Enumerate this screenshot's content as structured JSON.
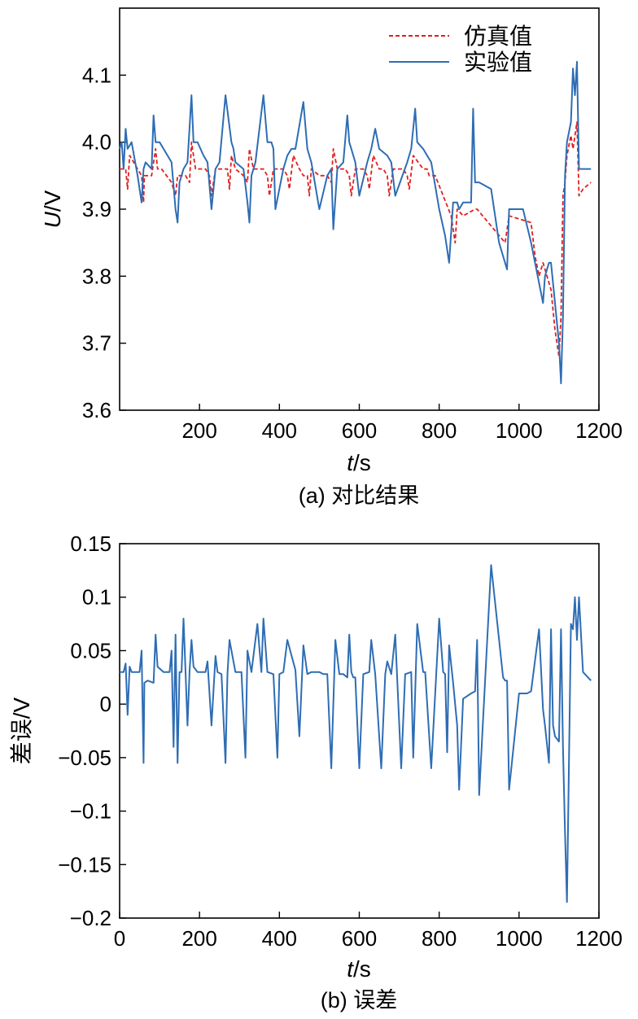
{
  "chart_data": [
    {
      "type": "line",
      "caption": "(a) 对比结果",
      "xlabel_italic": "t",
      "xlabel_unit": "/s",
      "ylabel_italic": "U",
      "ylabel_unit": "/V",
      "xlim": [
        0,
        1200
      ],
      "ylim": [
        3.6,
        4.2
      ],
      "xticks": [
        200,
        400,
        600,
        800,
        1000,
        1200
      ],
      "xtick_labels": [
        "200",
        "400",
        "600",
        "800",
        "1000",
        "1200"
      ],
      "yticks": [
        3.6,
        3.7,
        3.8,
        3.9,
        4.0,
        4.1
      ],
      "ytick_labels": [
        "3.6",
        "3.7",
        "3.8",
        "3.9",
        "4.0",
        "4.1"
      ],
      "grid": false,
      "legend_position": "top-right",
      "series": [
        {
          "name": "仿真值",
          "color": "#e02020",
          "dash": "dashed",
          "x": [
            0,
            15,
            20,
            25,
            45,
            55,
            60,
            62,
            80,
            90,
            95,
            105,
            130,
            140,
            145,
            150,
            165,
            175,
            180,
            190,
            215,
            225,
            230,
            240,
            260,
            270,
            275,
            280,
            290,
            310,
            320,
            325,
            335,
            360,
            370,
            375,
            385,
            410,
            420,
            425,
            435,
            450,
            460,
            470,
            475,
            480,
            500,
            520,
            530,
            535,
            545,
            565,
            575,
            580,
            590,
            610,
            620,
            625,
            635,
            650,
            660,
            670,
            675,
            685,
            710,
            720,
            725,
            735,
            760,
            770,
            775,
            790,
            830,
            840,
            845,
            860,
            890,
            895,
            965,
            975,
            1030,
            1040,
            1050,
            1060,
            1080,
            1090,
            1100,
            1105,
            1110,
            1115,
            1120,
            1130,
            1135,
            1145,
            1150,
            1160,
            1180
          ],
          "values": [
            3.96,
            3.96,
            3.93,
            3.98,
            3.96,
            3.95,
            3.91,
            3.95,
            3.95,
            3.99,
            3.96,
            3.96,
            3.94,
            3.92,
            3.95,
            3.95,
            3.95,
            3.94,
            4.0,
            3.96,
            3.96,
            3.95,
            3.92,
            3.96,
            3.96,
            3.96,
            3.93,
            3.98,
            3.96,
            3.95,
            3.94,
            3.99,
            3.96,
            3.96,
            3.95,
            3.92,
            3.96,
            3.96,
            3.95,
            3.93,
            3.98,
            3.96,
            3.95,
            3.95,
            3.92,
            3.96,
            3.95,
            3.95,
            3.94,
            3.99,
            3.96,
            3.96,
            3.95,
            3.92,
            3.96,
            3.96,
            3.95,
            3.93,
            3.98,
            3.96,
            3.96,
            3.95,
            3.92,
            3.96,
            3.96,
            3.95,
            3.93,
            3.98,
            3.96,
            3.96,
            3.95,
            3.95,
            3.89,
            3.85,
            3.9,
            3.89,
            3.9,
            3.9,
            3.85,
            3.89,
            3.88,
            3.83,
            3.8,
            3.82,
            3.78,
            3.72,
            3.68,
            3.74,
            3.92,
            3.94,
            3.98,
            4.01,
            3.99,
            4.03,
            3.92,
            3.93,
            3.94
          ]
        },
        {
          "name": "实验值",
          "color": "#2e6db4",
          "dash": "solid",
          "x": [
            0,
            5,
            10,
            15,
            20,
            30,
            45,
            55,
            60,
            65,
            80,
            85,
            90,
            100,
            110,
            130,
            140,
            145,
            150,
            160,
            170,
            180,
            185,
            195,
            210,
            220,
            230,
            240,
            250,
            265,
            280,
            285,
            290,
            310,
            320,
            325,
            330,
            340,
            360,
            370,
            380,
            385,
            390,
            410,
            420,
            430,
            440,
            460,
            470,
            475,
            480,
            500,
            520,
            530,
            535,
            545,
            560,
            570,
            575,
            580,
            590,
            600,
            620,
            630,
            640,
            650,
            670,
            680,
            690,
            720,
            730,
            740,
            745,
            760,
            770,
            780,
            800,
            815,
            825,
            835,
            840,
            845,
            850,
            860,
            880,
            885,
            890,
            900,
            930,
            950,
            970,
            975,
            980,
            1010,
            1030,
            1040,
            1060,
            1065,
            1075,
            1080,
            1090,
            1100,
            1105,
            1110,
            1115,
            1120,
            1130,
            1135,
            1140,
            1145,
            1150,
            1160,
            1180
          ],
          "values": [
            3.99,
            4.0,
            3.96,
            4.02,
            3.99,
            4.0,
            3.95,
            3.91,
            3.96,
            3.97,
            3.96,
            4.04,
            4.0,
            4.0,
            3.99,
            3.97,
            3.9,
            3.88,
            3.94,
            3.96,
            3.97,
            4.07,
            4.0,
            4.0,
            3.98,
            3.97,
            3.9,
            3.96,
            3.97,
            4.07,
            4.0,
            3.99,
            3.97,
            3.96,
            3.91,
            3.88,
            3.95,
            3.97,
            4.07,
            4.0,
            4.0,
            3.99,
            3.9,
            3.96,
            3.98,
            3.99,
            3.99,
            4.06,
            3.99,
            3.98,
            3.97,
            3.9,
            3.95,
            3.96,
            3.87,
            3.96,
            3.97,
            4.04,
            4.0,
            3.99,
            3.97,
            3.92,
            3.97,
            3.99,
            4.02,
            3.99,
            3.98,
            3.97,
            3.92,
            3.97,
            3.99,
            4.05,
            4.0,
            3.99,
            3.98,
            3.97,
            3.9,
            3.86,
            3.82,
            3.91,
            3.91,
            3.91,
            3.9,
            3.91,
            3.91,
            4.05,
            3.94,
            3.94,
            3.93,
            3.85,
            3.81,
            3.9,
            3.9,
            3.9,
            3.85,
            3.82,
            3.76,
            3.8,
            3.82,
            3.82,
            3.76,
            3.7,
            3.64,
            3.74,
            3.95,
            4.0,
            4.03,
            4.11,
            4.07,
            4.12,
            3.96,
            3.96,
            3.96
          ]
        }
      ]
    },
    {
      "type": "line",
      "caption": "(b) 误差",
      "xlabel_italic": "t",
      "xlabel_unit": "/s",
      "ylabel": "差误/V",
      "xlim": [
        0,
        1200
      ],
      "ylim": [
        -0.2,
        0.15
      ],
      "xticks": [
        0,
        200,
        400,
        600,
        800,
        1000,
        1200
      ],
      "xtick_labels": [
        "0",
        "200",
        "400",
        "600",
        "800",
        "1000",
        "1200"
      ],
      "yticks": [
        -0.2,
        -0.15,
        -0.1,
        -0.05,
        0,
        0.05,
        0.1,
        0.15
      ],
      "ytick_labels": [
        "−0.2",
        "−0.15",
        "−0.1",
        "−0.05",
        "0",
        "0.05",
        "0.1",
        "0.15"
      ],
      "grid": false,
      "series": [
        {
          "color": "#2e6db4",
          "x": [
            0,
            10,
            15,
            20,
            25,
            30,
            40,
            50,
            55,
            60,
            62,
            70,
            85,
            90,
            95,
            110,
            125,
            130,
            135,
            140,
            145,
            150,
            155,
            160,
            165,
            170,
            175,
            180,
            185,
            195,
            215,
            220,
            230,
            240,
            245,
            255,
            265,
            270,
            275,
            290,
            305,
            315,
            320,
            330,
            345,
            355,
            360,
            370,
            385,
            395,
            400,
            410,
            420,
            440,
            450,
            460,
            470,
            480,
            490,
            500,
            510,
            520,
            530,
            540,
            550,
            560,
            570,
            575,
            580,
            585,
            590,
            600,
            610,
            625,
            630,
            640,
            655,
            665,
            670,
            680,
            690,
            705,
            715,
            730,
            735,
            745,
            760,
            765,
            780,
            800,
            810,
            815,
            820,
            825,
            835,
            840,
            845,
            850,
            860,
            880,
            890,
            895,
            900,
            930,
            960,
            965,
            970,
            975,
            1000,
            1020,
            1030,
            1050,
            1060,
            1065,
            1075,
            1080,
            1085,
            1090,
            1100,
            1105,
            1110,
            1115,
            1120,
            1130,
            1135,
            1140,
            1145,
            1150,
            1160,
            1180
          ],
          "values": [
            0.03,
            0.03,
            0.038,
            -0.01,
            0.035,
            0.03,
            0.03,
            0.03,
            0.05,
            -0.055,
            0.02,
            0.022,
            0.02,
            0.065,
            0.035,
            0.03,
            0.03,
            0.05,
            -0.04,
            0.065,
            -0.055,
            0.03,
            0.03,
            0.08,
            0.03,
            -0.02,
            0.03,
            0.06,
            0.035,
            0.03,
            0.03,
            0.04,
            -0.02,
            0.045,
            0.03,
            0.028,
            -0.055,
            0.028,
            0.06,
            0.03,
            0.03,
            -0.05,
            0.05,
            0.03,
            0.075,
            0.03,
            0.08,
            0.03,
            0.028,
            -0.05,
            0.028,
            0.03,
            0.06,
            0.032,
            -0.03,
            0.055,
            0.028,
            0.03,
            0.03,
            0.03,
            0.028,
            0.028,
            -0.06,
            0.06,
            0.028,
            0.028,
            0.025,
            0.065,
            0.03,
            0.025,
            0.025,
            -0.06,
            0.028,
            0.03,
            0.06,
            0.028,
            -0.06,
            0.028,
            0.04,
            0.028,
            0.065,
            -0.06,
            0.028,
            0.03,
            -0.05,
            0.075,
            0.03,
            0.03,
            -0.06,
            0.08,
            0.03,
            0.028,
            -0.045,
            0.055,
            0.02,
            0.0,
            -0.02,
            -0.08,
            0.005,
            0.01,
            0.012,
            0.06,
            -0.085,
            0.13,
            0.025,
            0.022,
            0.022,
            -0.08,
            0.01,
            0.01,
            0.012,
            0.07,
            -0.005,
            -0.02,
            -0.055,
            0.07,
            -0.02,
            -0.03,
            -0.035,
            0.07,
            -0.04,
            -0.12,
            -0.185,
            0.075,
            0.07,
            0.1,
            0.06,
            0.1,
            0.03,
            0.022
          ]
        }
      ]
    }
  ]
}
